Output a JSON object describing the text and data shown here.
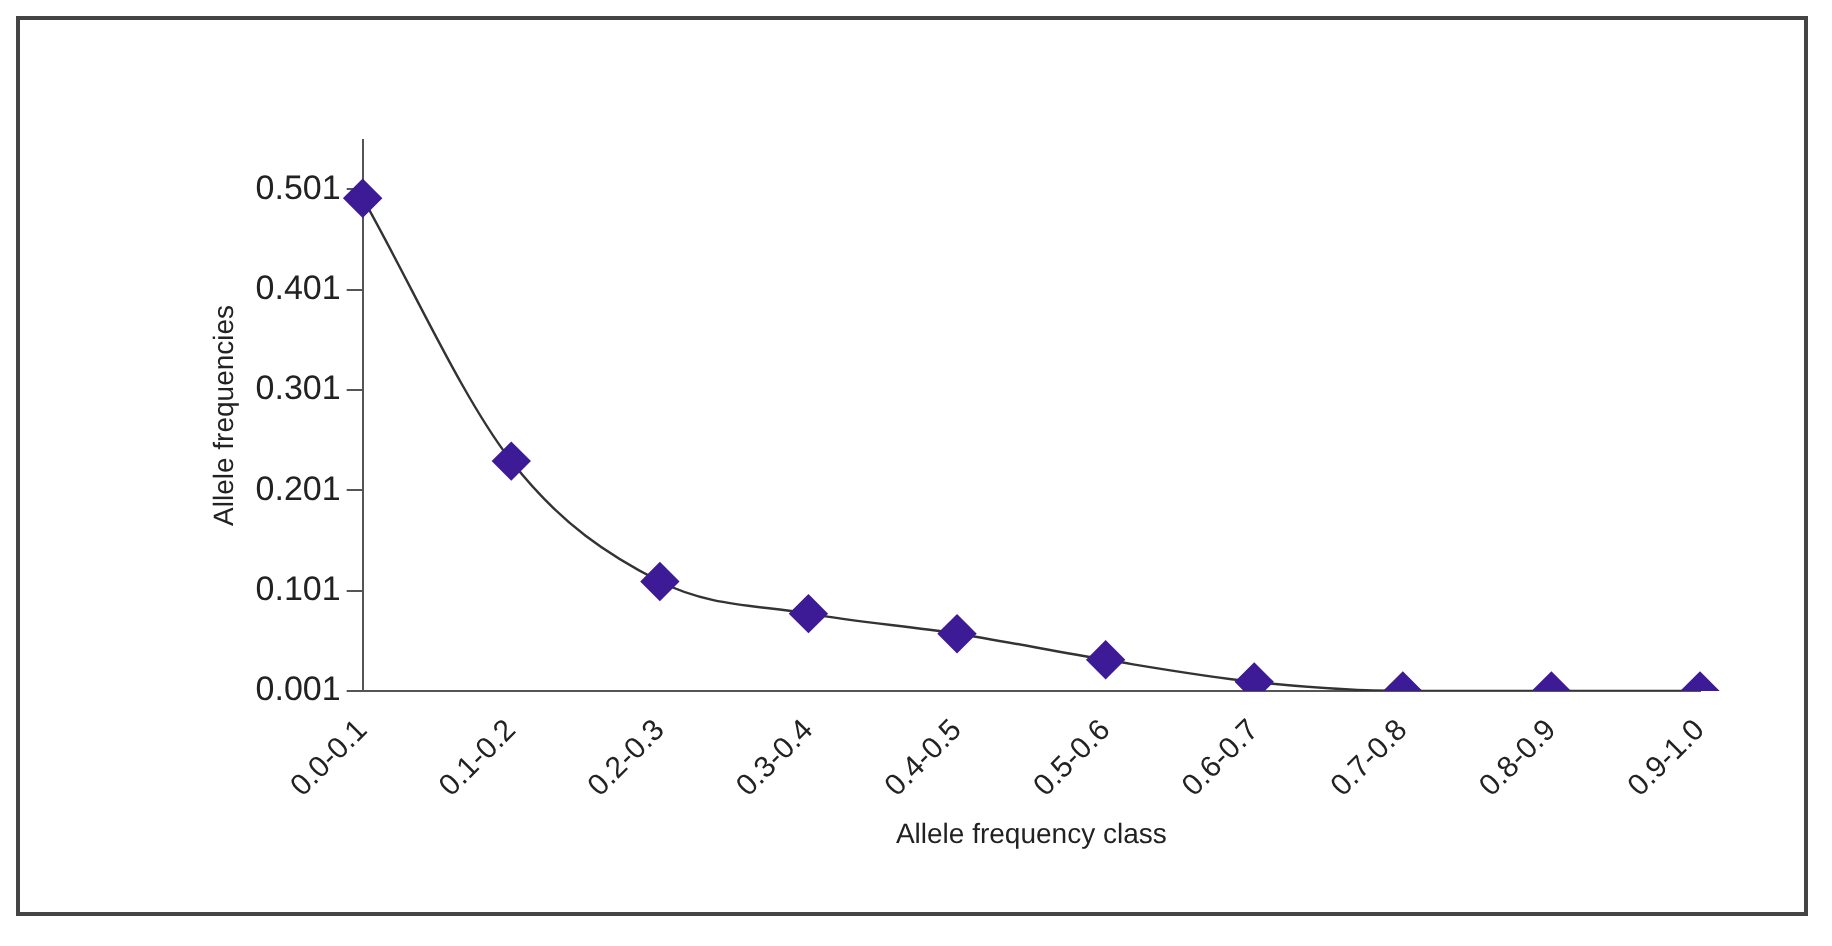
{
  "chart_data": {
    "type": "line",
    "xlabel": "Allele frequency class",
    "ylabel": "Allele frequencies",
    "categories": [
      "0.0-0.1",
      "0.1-0.2",
      "0.2-0.3",
      "0.3-0.4",
      "0.4-0.5",
      "0.5-0.6",
      "0.6-0.7",
      "0.7-0.8",
      "0.8-0.9",
      "0.9-1.0"
    ],
    "series": [
      {
        "color": "#3d1a96",
        "values": [
          0.492,
          0.23,
          0.11,
          0.078,
          0.058,
          0.032,
          0.01,
          0.001,
          0.001,
          0.001
        ]
      }
    ],
    "ylim": [
      0.001,
      0.55
    ],
    "yticks": [
      0.001,
      0.101,
      0.201,
      0.301,
      0.401,
      0.501
    ],
    "grid": false,
    "legend": false,
    "marker": "diamond",
    "line_style": "solid"
  }
}
